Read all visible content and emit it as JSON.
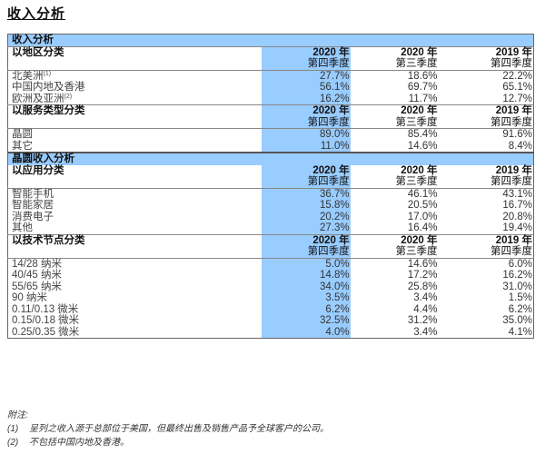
{
  "page_title": "收入分析",
  "table": {
    "title": "收入分析",
    "columns": [
      {
        "year": "2020 年",
        "quarter": "第四季度"
      },
      {
        "year": "2020 年",
        "quarter": "第三季度"
      },
      {
        "year": "2019 年",
        "quarter": "第四季度"
      }
    ],
    "highlight_color": "#99ccff",
    "by_region": {
      "label": "以地区分类",
      "rows": [
        {
          "label": "北美洲",
          "note": "(1)",
          "values": [
            "27.7%",
            "18.6%",
            "22.2%"
          ]
        },
        {
          "label": "中国内地及香港",
          "note": "",
          "values": [
            "56.1%",
            "69.7%",
            "65.1%"
          ]
        },
        {
          "label": "欧洲及亚洲",
          "note": "(2)",
          "values": [
            "16.2%",
            "11.7%",
            "12.7%"
          ]
        }
      ]
    },
    "by_service": {
      "label": "以服务类型分类",
      "rows": [
        {
          "label": "晶圆",
          "values": [
            "89.0%",
            "85.4%",
            "91.6%"
          ]
        },
        {
          "label": "其它",
          "values": [
            "11.0%",
            "14.6%",
            "8.4%"
          ]
        }
      ]
    },
    "wafer_section_title": "晶圆收入分析",
    "by_application": {
      "label": "以应用分类",
      "rows": [
        {
          "label": "智能手机",
          "values": [
            "36.7%",
            "46.1%",
            "43.1%"
          ]
        },
        {
          "label": "智能家居",
          "values": [
            "15.8%",
            "20.5%",
            "16.7%"
          ]
        },
        {
          "label": "消费电子",
          "values": [
            "20.2%",
            "17.0%",
            "20.8%"
          ]
        },
        {
          "label": "其他",
          "values": [
            "27.3%",
            "16.4%",
            "19.4%"
          ]
        }
      ]
    },
    "by_node": {
      "label": "以技术节点分类",
      "rows": [
        {
          "label": "14/28 纳米",
          "values": [
            "5.0%",
            "14.6%",
            "6.0%"
          ]
        },
        {
          "label": "40/45 纳米",
          "values": [
            "14.8%",
            "17.2%",
            "16.2%"
          ]
        },
        {
          "label": "55/65 纳米",
          "values": [
            "34.0%",
            "25.8%",
            "31.0%"
          ]
        },
        {
          "label": "90 纳米",
          "values": [
            "3.5%",
            "3.4%",
            "1.5%"
          ]
        },
        {
          "label": "0.11/0.13 微米",
          "values": [
            "6.2%",
            "4.4%",
            "6.2%"
          ]
        },
        {
          "label": "0.15/0.18 微米",
          "values": [
            "32.5%",
            "31.2%",
            "35.0%"
          ]
        },
        {
          "label": "0.25/0.35 微米",
          "values": [
            "4.0%",
            "3.4%",
            "4.1%"
          ]
        }
      ]
    }
  },
  "notes": {
    "heading": "附注:",
    "items": [
      {
        "mark": "(1)",
        "text": "呈列之收入源于总部位于美国，但最终出售及销售产品予全球客户的公司。"
      },
      {
        "mark": "(2)",
        "text": "不包括中国内地及香港。"
      }
    ]
  }
}
